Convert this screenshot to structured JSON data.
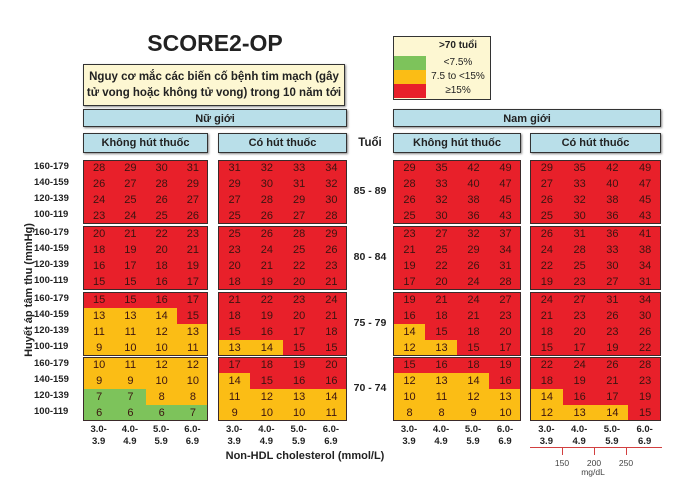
{
  "title": "SCORE2-OP",
  "subtitle_line1": "Nguy cơ mắc các biến cố bệnh tim mạch (gây",
  "subtitle_line2": "tử vong hoặc không tử vong) trong 10 năm tới",
  "legend": {
    "header": ">70 tuổi",
    "items": [
      {
        "label": "<7.5%",
        "color": "#7dc35b"
      },
      {
        "label": "7.5 to <15%",
        "color": "#fbbd15"
      },
      {
        "label": "≥15%",
        "color": "#e8202a"
      }
    ]
  },
  "sex_labels": {
    "female": "Nữ giới",
    "male": "Nam giới"
  },
  "smoking_labels": {
    "nonsmoker": "Không hút thuốc",
    "smoker": "Có hút thuốc"
  },
  "age_header": "Tuổi",
  "y_axis_label": "Huyết áp tâm thu (mmHg)",
  "x_axis_label": "Non-HDL cholesterol (mmol/L)",
  "mg_dl": {
    "ticks": [
      "150",
      "200",
      "250"
    ],
    "unit": "mg/dL"
  },
  "chart_data": {
    "type": "heatmap",
    "title": "SCORE2-OP",
    "ages": [
      "85 - 89",
      "80 - 84",
      "75 - 79",
      "70 - 74"
    ],
    "sbp_rows": [
      "160-179",
      "140-159",
      "120-139",
      "100-119"
    ],
    "chol_cols": [
      [
        "3.0-",
        "3.9"
      ],
      [
        "4.0-",
        "4.9"
      ],
      [
        "5.0-",
        "5.9"
      ],
      [
        "6.0-",
        "6.9"
      ]
    ],
    "thresholds": {
      "green_below": 7.5,
      "red_at_or_above": 15
    },
    "panels": [
      {
        "sex": "female",
        "smoking": "nonsmoker",
        "values": [
          [
            [
              28,
              29,
              30,
              31
            ],
            [
              26,
              27,
              28,
              29
            ],
            [
              24,
              25,
              26,
              27
            ],
            [
              23,
              24,
              25,
              26
            ]
          ],
          [
            [
              20,
              21,
              22,
              23
            ],
            [
              18,
              19,
              20,
              21
            ],
            [
              16,
              17,
              18,
              19
            ],
            [
              15,
              15,
              16,
              17
            ]
          ],
          [
            [
              15,
              15,
              16,
              17
            ],
            [
              13,
              13,
              14,
              15
            ],
            [
              11,
              11,
              12,
              13
            ],
            [
              9,
              10,
              10,
              11
            ]
          ],
          [
            [
              10,
              11,
              12,
              12
            ],
            [
              9,
              9,
              10,
              10
            ],
            [
              7,
              7,
              8,
              8
            ],
            [
              6,
              6,
              6,
              7
            ]
          ]
        ]
      },
      {
        "sex": "female",
        "smoking": "smoker",
        "values": [
          [
            [
              31,
              32,
              33,
              34
            ],
            [
              29,
              30,
              31,
              32
            ],
            [
              27,
              28,
              29,
              30
            ],
            [
              25,
              26,
              27,
              28
            ]
          ],
          [
            [
              25,
              26,
              28,
              29
            ],
            [
              23,
              24,
              25,
              26
            ],
            [
              20,
              21,
              22,
              23
            ],
            [
              18,
              19,
              20,
              21
            ]
          ],
          [
            [
              21,
              22,
              23,
              24
            ],
            [
              18,
              19,
              20,
              21
            ],
            [
              15,
              16,
              17,
              18
            ],
            [
              13,
              14,
              15,
              15
            ]
          ],
          [
            [
              17,
              18,
              19,
              20
            ],
            [
              14,
              15,
              16,
              16
            ],
            [
              11,
              12,
              13,
              14
            ],
            [
              9,
              10,
              10,
              11
            ]
          ]
        ]
      },
      {
        "sex": "male",
        "smoking": "nonsmoker",
        "values": [
          [
            [
              29,
              35,
              42,
              49
            ],
            [
              28,
              33,
              40,
              47
            ],
            [
              26,
              32,
              38,
              45
            ],
            [
              25,
              30,
              36,
              43
            ]
          ],
          [
            [
              23,
              27,
              32,
              37
            ],
            [
              21,
              25,
              29,
              34
            ],
            [
              19,
              22,
              26,
              31
            ],
            [
              17,
              20,
              24,
              28
            ]
          ],
          [
            [
              19,
              21,
              24,
              27
            ],
            [
              16,
              18,
              21,
              23
            ],
            [
              14,
              15,
              18,
              20
            ],
            [
              12,
              13,
              15,
              17
            ]
          ],
          [
            [
              15,
              16,
              18,
              19
            ],
            [
              12,
              13,
              14,
              16
            ],
            [
              10,
              11,
              12,
              13
            ],
            [
              8,
              8,
              9,
              10
            ]
          ]
        ]
      },
      {
        "sex": "male",
        "smoking": "smoker",
        "values": [
          [
            [
              29,
              35,
              42,
              49
            ],
            [
              27,
              33,
              40,
              47
            ],
            [
              26,
              32,
              38,
              45
            ],
            [
              25,
              30,
              36,
              43
            ]
          ],
          [
            [
              26,
              31,
              36,
              41
            ],
            [
              24,
              28,
              33,
              38
            ],
            [
              22,
              25,
              30,
              34
            ],
            [
              19,
              23,
              27,
              31
            ]
          ],
          [
            [
              24,
              27,
              31,
              34
            ],
            [
              21,
              23,
              26,
              30
            ],
            [
              18,
              20,
              23,
              26
            ],
            [
              15,
              17,
              19,
              22
            ]
          ],
          [
            [
              22,
              24,
              26,
              28
            ],
            [
              18,
              19,
              21,
              23
            ],
            [
              14,
              16,
              17,
              19
            ],
            [
              12,
              13,
              14,
              15
            ]
          ]
        ]
      }
    ]
  }
}
